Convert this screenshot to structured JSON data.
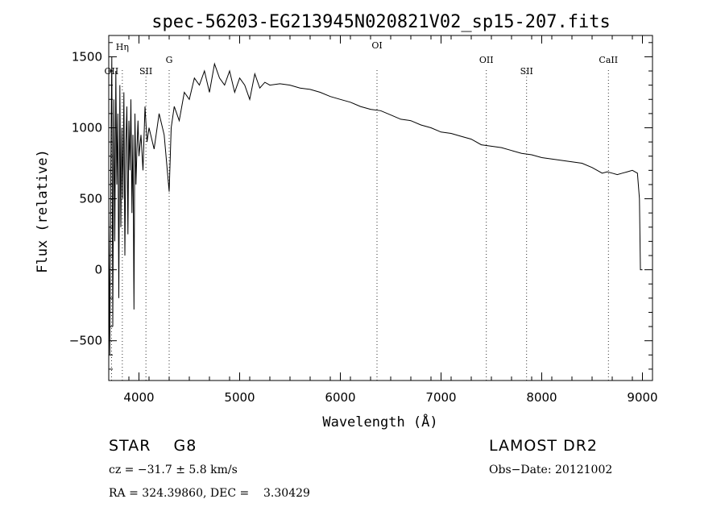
{
  "chart_data": {
    "type": "line",
    "title": "spec-56203-EG213945N020821V02_sp15-207.fits",
    "xlabel": "Wavelength (Å)",
    "ylabel": "Flux (relative)",
    "xlim": [
      3700,
      9100
    ],
    "ylim": [
      -780,
      1650
    ],
    "x_ticks": [
      4000,
      5000,
      6000,
      7000,
      8000,
      9000
    ],
    "y_ticks": [
      -500,
      0,
      500,
      1000,
      1500
    ],
    "series": [
      {
        "x": [
          3700,
          3710,
          3720,
          3730,
          3740,
          3750,
          3760,
          3770,
          3780,
          3790,
          3800,
          3810,
          3820,
          3830,
          3840,
          3850,
          3860,
          3870,
          3880,
          3890,
          3900,
          3910,
          3920,
          3930,
          3940,
          3950,
          3960,
          3970,
          3980,
          3990,
          4000,
          4020,
          4040,
          4060,
          4080,
          4100,
          4150,
          4200,
          4250,
          4300,
          4320,
          4350,
          4400,
          4450,
          4500,
          4550,
          4600,
          4650,
          4700,
          4750,
          4800,
          4850,
          4900,
          4950,
          5000,
          5050,
          5100,
          5150,
          5200,
          5250,
          5300,
          5400,
          5500,
          5600,
          5700,
          5800,
          5900,
          6000,
          6100,
          6200,
          6300,
          6400,
          6500,
          6600,
          6700,
          6800,
          6900,
          7000,
          7100,
          7200,
          7300,
          7400,
          7500,
          7600,
          7700,
          7800,
          7900,
          8000,
          8100,
          8200,
          8300,
          8400,
          8500,
          8550,
          8600,
          8650,
          8700,
          8750,
          8800,
          8850,
          8900,
          8950,
          8970,
          8980,
          9000
        ],
        "y": [
          400,
          -600,
          700,
          1500,
          -400,
          1200,
          200,
          1400,
          600,
          1100,
          -200,
          1300,
          300,
          1000,
          500,
          1250,
          100,
          900,
          1150,
          250,
          1050,
          700,
          1200,
          400,
          950,
          -280,
          1100,
          600,
          850,
          1050,
          800,
          950,
          700,
          1150,
          900,
          1000,
          850,
          1100,
          950,
          550,
          1000,
          1150,
          1050,
          1250,
          1200,
          1350,
          1300,
          1400,
          1250,
          1450,
          1350,
          1300,
          1400,
          1250,
          1350,
          1300,
          1200,
          1380,
          1280,
          1320,
          1300,
          1310,
          1300,
          1280,
          1270,
          1250,
          1220,
          1200,
          1180,
          1150,
          1130,
          1120,
          1090,
          1060,
          1050,
          1020,
          1000,
          970,
          960,
          940,
          920,
          880,
          870,
          860,
          840,
          820,
          810,
          790,
          780,
          770,
          760,
          750,
          720,
          700,
          680,
          690,
          680,
          670,
          680,
          690,
          700,
          680,
          500,
          0,
          0
        ]
      }
    ],
    "lines": [
      {
        "label": "OII",
        "x": 3727
      },
      {
        "label": "Hη",
        "x": 3835
      },
      {
        "label": "SII",
        "x": 4069
      },
      {
        "label": "G",
        "x": 4300
      },
      {
        "label": "OI",
        "x": 6364
      },
      {
        "label": "OII",
        "x": 7450
      },
      {
        "label": "SII",
        "x": 7850
      },
      {
        "label": "CaII",
        "x": 8662
      }
    ]
  },
  "info": {
    "class_line": "STAR    G8",
    "survey": "LAMOST DR2",
    "cz": "cz = −31.7 ± 5.8 km/s",
    "obsdate": "Obs−Date: 20121002",
    "radec": "RA = 324.39860, DEC =    3.30429"
  }
}
